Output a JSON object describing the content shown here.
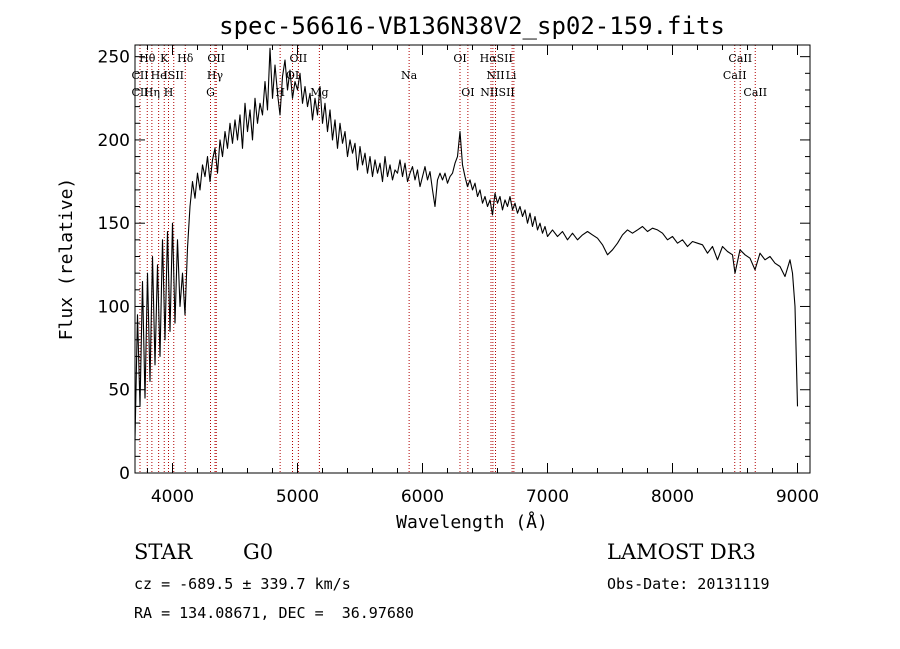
{
  "chart_data": {
    "type": "line",
    "title": "spec-56616-VB136N38V2_sp02-159.fits",
    "xlabel": "Wavelength (Å)",
    "ylabel": "Flux (relative)",
    "xlim": [
      3700,
      9100
    ],
    "ylim": [
      0,
      257
    ],
    "x_ticks": [
      4000,
      5000,
      6000,
      7000,
      8000,
      9000
    ],
    "y_ticks": [
      0,
      50,
      100,
      150,
      200,
      250
    ],
    "series": [
      {
        "name": "spectrum",
        "points": [
          [
            3700,
            20
          ],
          [
            3720,
            95
          ],
          [
            3740,
            40
          ],
          [
            3760,
            115
          ],
          [
            3780,
            45
          ],
          [
            3800,
            120
          ],
          [
            3820,
            55
          ],
          [
            3840,
            130
          ],
          [
            3860,
            65
          ],
          [
            3880,
            125
          ],
          [
            3900,
            70
          ],
          [
            3920,
            140
          ],
          [
            3940,
            80
          ],
          [
            3960,
            145
          ],
          [
            3980,
            85
          ],
          [
            4000,
            150
          ],
          [
            4020,
            90
          ],
          [
            4040,
            140
          ],
          [
            4060,
            100
          ],
          [
            4080,
            120
          ],
          [
            4100,
            95
          ],
          [
            4120,
            135
          ],
          [
            4140,
            160
          ],
          [
            4160,
            175
          ],
          [
            4180,
            165
          ],
          [
            4200,
            180
          ],
          [
            4220,
            170
          ],
          [
            4240,
            185
          ],
          [
            4260,
            178
          ],
          [
            4280,
            190
          ],
          [
            4300,
            175
          ],
          [
            4320,
            188
          ],
          [
            4340,
            195
          ],
          [
            4360,
            180
          ],
          [
            4380,
            200
          ],
          [
            4400,
            190
          ],
          [
            4420,
            205
          ],
          [
            4440,
            195
          ],
          [
            4460,
            210
          ],
          [
            4480,
            198
          ],
          [
            4500,
            212
          ],
          [
            4520,
            200
          ],
          [
            4540,
            215
          ],
          [
            4560,
            195
          ],
          [
            4580,
            222
          ],
          [
            4600,
            205
          ],
          [
            4620,
            218
          ],
          [
            4640,
            200
          ],
          [
            4660,
            225
          ],
          [
            4680,
            210
          ],
          [
            4700,
            222
          ],
          [
            4720,
            215
          ],
          [
            4740,
            235
          ],
          [
            4760,
            218
          ],
          [
            4780,
            255
          ],
          [
            4800,
            225
          ],
          [
            4820,
            245
          ],
          [
            4840,
            228
          ],
          [
            4860,
            215
          ],
          [
            4880,
            238
          ],
          [
            4900,
            248
          ],
          [
            4920,
            230
          ],
          [
            4940,
            242
          ],
          [
            4960,
            225
          ],
          [
            4980,
            235
          ],
          [
            5000,
            230
          ],
          [
            5020,
            240
          ],
          [
            5040,
            222
          ],
          [
            5060,
            232
          ],
          [
            5080,
            220
          ],
          [
            5100,
            228
          ],
          [
            5120,
            212
          ],
          [
            5140,
            225
          ],
          [
            5160,
            215
          ],
          [
            5180,
            232
          ],
          [
            5200,
            210
          ],
          [
            5220,
            222
          ],
          [
            5240,
            205
          ],
          [
            5260,
            218
          ],
          [
            5280,
            200
          ],
          [
            5300,
            212
          ],
          [
            5320,
            195
          ],
          [
            5340,
            210
          ],
          [
            5360,
            198
          ],
          [
            5380,
            205
          ],
          [
            5400,
            190
          ],
          [
            5420,
            200
          ],
          [
            5440,
            192
          ],
          [
            5460,
            198
          ],
          [
            5480,
            182
          ],
          [
            5500,
            196
          ],
          [
            5520,
            185
          ],
          [
            5540,
            192
          ],
          [
            5560,
            180
          ],
          [
            5580,
            190
          ],
          [
            5600,
            178
          ],
          [
            5620,
            188
          ],
          [
            5640,
            180
          ],
          [
            5660,
            186
          ],
          [
            5680,
            175
          ],
          [
            5700,
            190
          ],
          [
            5720,
            178
          ],
          [
            5740,
            185
          ],
          [
            5760,
            176
          ],
          [
            5780,
            182
          ],
          [
            5800,
            180
          ],
          [
            5820,
            188
          ],
          [
            5840,
            178
          ],
          [
            5860,
            186
          ],
          [
            5880,
            175
          ],
          [
            5900,
            180
          ],
          [
            5920,
            184
          ],
          [
            5940,
            176
          ],
          [
            5960,
            182
          ],
          [
            5980,
            172
          ],
          [
            6000,
            178
          ],
          [
            6020,
            184
          ],
          [
            6040,
            176
          ],
          [
            6060,
            181
          ],
          [
            6080,
            170
          ],
          [
            6100,
            160
          ],
          [
            6120,
            176
          ],
          [
            6140,
            180
          ],
          [
            6160,
            176
          ],
          [
            6180,
            180
          ],
          [
            6200,
            174
          ],
          [
            6220,
            178
          ],
          [
            6240,
            180
          ],
          [
            6260,
            186
          ],
          [
            6280,
            190
          ],
          [
            6300,
            205
          ],
          [
            6320,
            185
          ],
          [
            6340,
            178
          ],
          [
            6360,
            172
          ],
          [
            6380,
            176
          ],
          [
            6400,
            170
          ],
          [
            6420,
            174
          ],
          [
            6440,
            166
          ],
          [
            6460,
            170
          ],
          [
            6480,
            162
          ],
          [
            6500,
            166
          ],
          [
            6520,
            160
          ],
          [
            6540,
            164
          ],
          [
            6560,
            155
          ],
          [
            6580,
            168
          ],
          [
            6600,
            162
          ],
          [
            6620,
            166
          ],
          [
            6640,
            158
          ],
          [
            6660,
            164
          ],
          [
            6680,
            160
          ],
          [
            6700,
            166
          ],
          [
            6720,
            158
          ],
          [
            6740,
            162
          ],
          [
            6760,
            156
          ],
          [
            6780,
            160
          ],
          [
            6800,
            154
          ],
          [
            6820,
            158
          ],
          [
            6840,
            150
          ],
          [
            6860,
            156
          ],
          [
            6880,
            148
          ],
          [
            6900,
            154
          ],
          [
            6920,
            146
          ],
          [
            6940,
            150
          ],
          [
            6960,
            144
          ],
          [
            6980,
            148
          ],
          [
            7000,
            142
          ],
          [
            7040,
            146
          ],
          [
            7080,
            142
          ],
          [
            7120,
            145
          ],
          [
            7160,
            140
          ],
          [
            7200,
            144
          ],
          [
            7240,
            140
          ],
          [
            7280,
            143
          ],
          [
            7320,
            145
          ],
          [
            7360,
            143
          ],
          [
            7400,
            141
          ],
          [
            7440,
            137
          ],
          [
            7480,
            131
          ],
          [
            7520,
            134
          ],
          [
            7560,
            138
          ],
          [
            7600,
            143
          ],
          [
            7640,
            146
          ],
          [
            7680,
            144
          ],
          [
            7720,
            146
          ],
          [
            7760,
            148
          ],
          [
            7800,
            145
          ],
          [
            7840,
            147
          ],
          [
            7880,
            146
          ],
          [
            7920,
            144
          ],
          [
            7960,
            140
          ],
          [
            8000,
            142
          ],
          [
            8040,
            138
          ],
          [
            8080,
            140
          ],
          [
            8120,
            136
          ],
          [
            8160,
            139
          ],
          [
            8200,
            138
          ],
          [
            8240,
            137
          ],
          [
            8280,
            132
          ],
          [
            8320,
            136
          ],
          [
            8360,
            128
          ],
          [
            8400,
            136
          ],
          [
            8440,
            133
          ],
          [
            8480,
            131
          ],
          [
            8500,
            120
          ],
          [
            8540,
            134
          ],
          [
            8580,
            131
          ],
          [
            8620,
            129
          ],
          [
            8660,
            122
          ],
          [
            8700,
            132
          ],
          [
            8740,
            128
          ],
          [
            8780,
            130
          ],
          [
            8820,
            126
          ],
          [
            8860,
            124
          ],
          [
            8900,
            118
          ],
          [
            8940,
            128
          ],
          [
            8960,
            120
          ],
          [
            8980,
            100
          ],
          [
            9000,
            40
          ]
        ]
      }
    ],
    "spectral_lines": [
      {
        "label": "Hθ",
        "wavelength": 3798,
        "row": 0
      },
      {
        "label": "K",
        "wavelength": 3934,
        "row": 0
      },
      {
        "label": "Hδ",
        "wavelength": 4102,
        "row": 0
      },
      {
        "label": "OII",
        "wavelength": 4350,
        "row": 0
      },
      {
        "label": "OII",
        "wavelength": 5007,
        "row": 0
      },
      {
        "label": "OI",
        "wavelength": 6300,
        "row": 0
      },
      {
        "label": "HαSII",
        "wavelength": 6590,
        "row": 0
      },
      {
        "label": "CaII",
        "wavelength": 8542,
        "row": 0
      },
      {
        "label": "CII",
        "wavelength": 3740,
        "row": 1
      },
      {
        "label": "He",
        "wavelength": 3889,
        "row": 1
      },
      {
        "label": "ISII",
        "wavelength": 4010,
        "row": 1
      },
      {
        "label": "Hγ",
        "wavelength": 4340,
        "row": 1
      },
      {
        "label": "OI",
        "wavelength": 4960,
        "row": 1
      },
      {
        "label": "Na",
        "wavelength": 5893,
        "row": 1
      },
      {
        "label": "NII",
        "wavelength": 6584,
        "row": 1
      },
      {
        "label": "Li",
        "wavelength": 6708,
        "row": 1
      },
      {
        "label": "CaII",
        "wavelength": 8498,
        "row": 1
      },
      {
        "label": "CII",
        "wavelength": 3740,
        "row": 2
      },
      {
        "label": "Hη",
        "wavelength": 3835,
        "row": 2
      },
      {
        "label": "H",
        "wavelength": 3968,
        "row": 2
      },
      {
        "label": "G",
        "wavelength": 4304,
        "row": 2
      },
      {
        "label": "H",
        "wavelength": 4861,
        "row": 2
      },
      {
        "label": "Mg",
        "wavelength": 5175,
        "row": 2
      },
      {
        "label": "OI",
        "wavelength": 6363,
        "row": 2
      },
      {
        "label": "NIISII",
        "wavelength": 6600,
        "row": 2
      },
      {
        "label": "CaII",
        "wavelength": 8662,
        "row": 2
      }
    ],
    "line_markers": [
      3740,
      3798,
      3835,
      3889,
      3934,
      3968,
      4010,
      4102,
      4304,
      4340,
      4350,
      4861,
      4960,
      5007,
      5175,
      5893,
      6300,
      6363,
      6548,
      6563,
      6584,
      6717,
      6731,
      8498,
      8542,
      8662
    ]
  },
  "info": {
    "object_class": "STAR",
    "subclass": "G0",
    "survey": "LAMOST DR3",
    "redshift": "cz = -689.5 ± 339.7 km/s",
    "obs_date": "Obs-Date: 20131119",
    "coords": "RA = 134.08671, DEC =  36.97680"
  }
}
